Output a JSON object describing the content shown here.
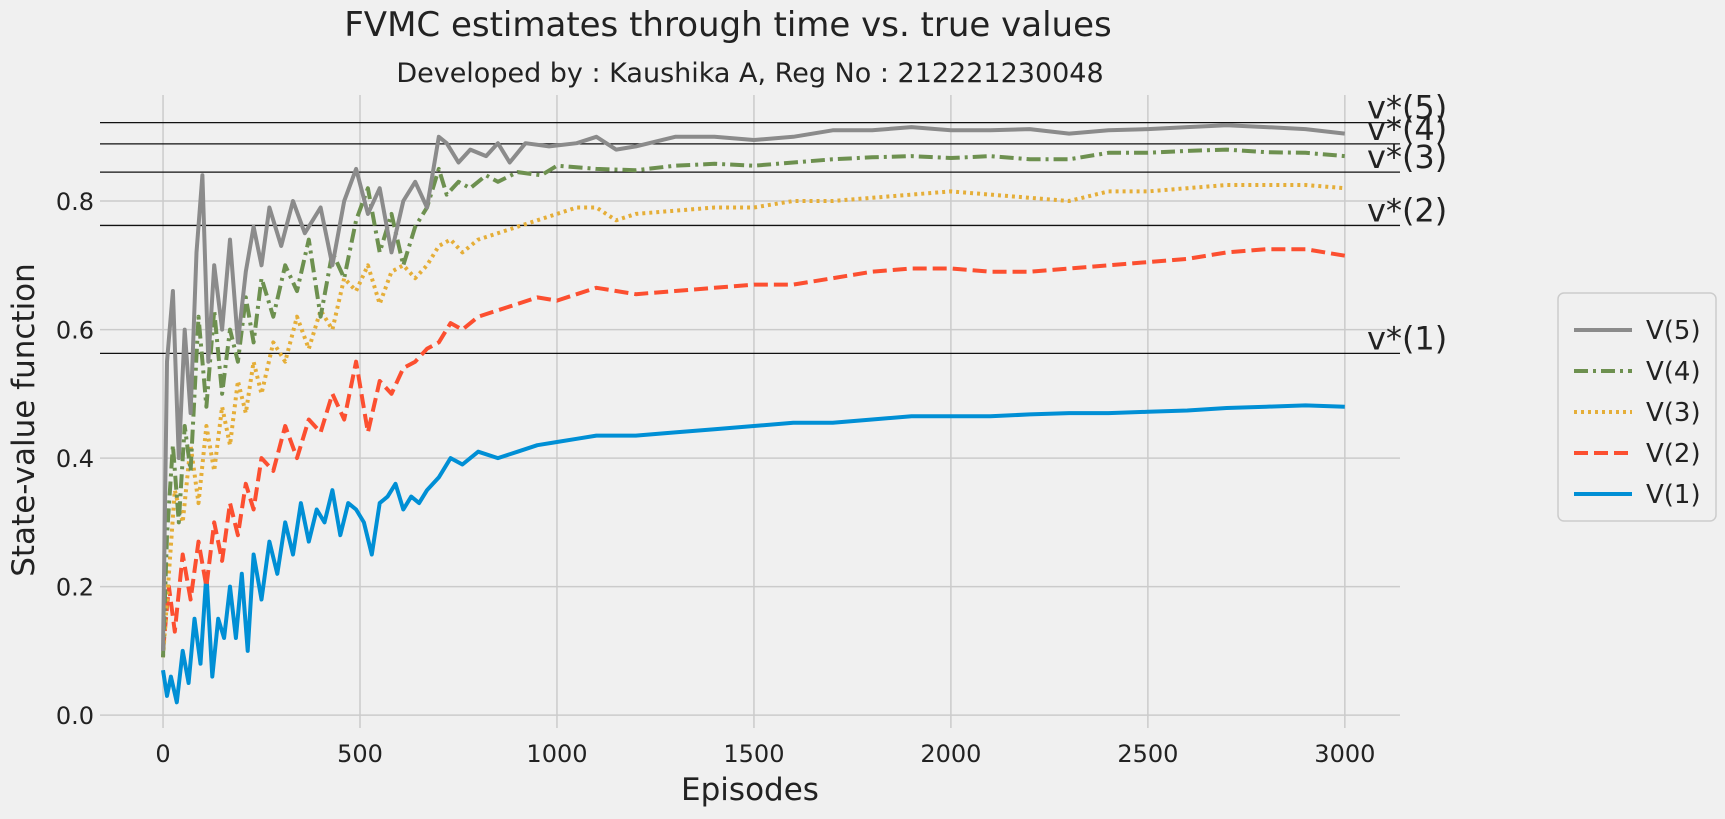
{
  "chart_data": {
    "type": "line",
    "title": "FVMC estimates through time vs. true values",
    "subtitle": "Developed by : Kaushika A, Reg No : 212221230048",
    "xlabel": "Episodes",
    "ylabel": "State-value function",
    "xlim": [
      -160,
      3140
    ],
    "ylim": [
      -0.02,
      0.965
    ],
    "xticks": [
      0,
      500,
      1000,
      1500,
      2000,
      2500,
      3000
    ],
    "yticks": [
      0.0,
      0.2,
      0.4,
      0.6,
      0.8
    ],
    "ytick_labels": [
      "0.0",
      "0.2",
      "0.4",
      "0.6",
      "0.8"
    ],
    "grid": true,
    "legend_position": "right",
    "reference_lines": [
      {
        "label": "v*(5)",
        "y": 0.922
      },
      {
        "label": "v*(4)",
        "y": 0.889
      },
      {
        "label": "v*(3)",
        "y": 0.845
      },
      {
        "label": "v*(2)",
        "y": 0.762
      },
      {
        "label": "v*(1)",
        "y": 0.563
      }
    ],
    "series": [
      {
        "name": "V(5)",
        "color": "#8b8b8b",
        "dash": "solid",
        "points": [
          [
            0,
            0.1
          ],
          [
            10,
            0.55
          ],
          [
            25,
            0.66
          ],
          [
            40,
            0.4
          ],
          [
            55,
            0.6
          ],
          [
            70,
            0.47
          ],
          [
            85,
            0.72
          ],
          [
            100,
            0.84
          ],
          [
            115,
            0.55
          ],
          [
            130,
            0.7
          ],
          [
            150,
            0.6
          ],
          [
            170,
            0.74
          ],
          [
            190,
            0.58
          ],
          [
            210,
            0.69
          ],
          [
            230,
            0.76
          ],
          [
            250,
            0.7
          ],
          [
            270,
            0.79
          ],
          [
            300,
            0.73
          ],
          [
            330,
            0.8
          ],
          [
            360,
            0.75
          ],
          [
            400,
            0.79
          ],
          [
            430,
            0.7
          ],
          [
            460,
            0.8
          ],
          [
            490,
            0.85
          ],
          [
            520,
            0.78
          ],
          [
            550,
            0.82
          ],
          [
            580,
            0.72
          ],
          [
            610,
            0.8
          ],
          [
            640,
            0.83
          ],
          [
            670,
            0.79
          ],
          [
            700,
            0.9
          ],
          [
            720,
            0.89
          ],
          [
            750,
            0.86
          ],
          [
            780,
            0.88
          ],
          [
            820,
            0.87
          ],
          [
            850,
            0.89
          ],
          [
            880,
            0.86
          ],
          [
            920,
            0.89
          ],
          [
            980,
            0.885
          ],
          [
            1050,
            0.89
          ],
          [
            1100,
            0.9
          ],
          [
            1150,
            0.88
          ],
          [
            1200,
            0.885
          ],
          [
            1300,
            0.9
          ],
          [
            1400,
            0.9
          ],
          [
            1500,
            0.895
          ],
          [
            1600,
            0.9
          ],
          [
            1700,
            0.91
          ],
          [
            1800,
            0.91
          ],
          [
            1900,
            0.915
          ],
          [
            2000,
            0.91
          ],
          [
            2100,
            0.91
          ],
          [
            2200,
            0.912
          ],
          [
            2300,
            0.905
          ],
          [
            2400,
            0.91
          ],
          [
            2500,
            0.912
          ],
          [
            2600,
            0.915
          ],
          [
            2700,
            0.918
          ],
          [
            2800,
            0.915
          ],
          [
            2900,
            0.912
          ],
          [
            3000,
            0.905
          ]
        ]
      },
      {
        "name": "V(4)",
        "color": "#6d904f",
        "dash": "dashdot",
        "points": [
          [
            0,
            0.09
          ],
          [
            10,
            0.28
          ],
          [
            25,
            0.42
          ],
          [
            40,
            0.3
          ],
          [
            55,
            0.45
          ],
          [
            70,
            0.38
          ],
          [
            90,
            0.62
          ],
          [
            110,
            0.48
          ],
          [
            130,
            0.63
          ],
          [
            150,
            0.5
          ],
          [
            170,
            0.6
          ],
          [
            190,
            0.55
          ],
          [
            210,
            0.65
          ],
          [
            230,
            0.58
          ],
          [
            250,
            0.68
          ],
          [
            280,
            0.62
          ],
          [
            310,
            0.7
          ],
          [
            340,
            0.66
          ],
          [
            370,
            0.74
          ],
          [
            400,
            0.62
          ],
          [
            430,
            0.72
          ],
          [
            460,
            0.68
          ],
          [
            490,
            0.77
          ],
          [
            520,
            0.82
          ],
          [
            550,
            0.72
          ],
          [
            580,
            0.78
          ],
          [
            610,
            0.7
          ],
          [
            640,
            0.76
          ],
          [
            670,
            0.79
          ],
          [
            700,
            0.85
          ],
          [
            720,
            0.81
          ],
          [
            750,
            0.83
          ],
          [
            780,
            0.82
          ],
          [
            820,
            0.84
          ],
          [
            850,
            0.83
          ],
          [
            900,
            0.845
          ],
          [
            960,
            0.84
          ],
          [
            1000,
            0.855
          ],
          [
            1100,
            0.85
          ],
          [
            1200,
            0.848
          ],
          [
            1300,
            0.855
          ],
          [
            1400,
            0.858
          ],
          [
            1500,
            0.855
          ],
          [
            1600,
            0.86
          ],
          [
            1700,
            0.865
          ],
          [
            1800,
            0.868
          ],
          [
            1900,
            0.87
          ],
          [
            2000,
            0.867
          ],
          [
            2100,
            0.87
          ],
          [
            2200,
            0.865
          ],
          [
            2300,
            0.865
          ],
          [
            2400,
            0.875
          ],
          [
            2500,
            0.875
          ],
          [
            2600,
            0.878
          ],
          [
            2700,
            0.88
          ],
          [
            2800,
            0.876
          ],
          [
            2900,
            0.875
          ],
          [
            3000,
            0.87
          ]
        ]
      },
      {
        "name": "V(3)",
        "color": "#e5ae38",
        "dash": "dotted",
        "points": [
          [
            0,
            0.09
          ],
          [
            15,
            0.22
          ],
          [
            30,
            0.35
          ],
          [
            50,
            0.3
          ],
          [
            70,
            0.42
          ],
          [
            90,
            0.33
          ],
          [
            110,
            0.45
          ],
          [
            130,
            0.38
          ],
          [
            150,
            0.48
          ],
          [
            170,
            0.42
          ],
          [
            190,
            0.52
          ],
          [
            210,
            0.47
          ],
          [
            230,
            0.55
          ],
          [
            250,
            0.5
          ],
          [
            280,
            0.58
          ],
          [
            310,
            0.55
          ],
          [
            340,
            0.62
          ],
          [
            370,
            0.57
          ],
          [
            400,
            0.63
          ],
          [
            430,
            0.6
          ],
          [
            460,
            0.68
          ],
          [
            490,
            0.66
          ],
          [
            520,
            0.7
          ],
          [
            550,
            0.64
          ],
          [
            580,
            0.69
          ],
          [
            610,
            0.7
          ],
          [
            640,
            0.68
          ],
          [
            670,
            0.7
          ],
          [
            700,
            0.73
          ],
          [
            730,
            0.74
          ],
          [
            760,
            0.72
          ],
          [
            800,
            0.74
          ],
          [
            850,
            0.75
          ],
          [
            900,
            0.76
          ],
          [
            950,
            0.77
          ],
          [
            1000,
            0.78
          ],
          [
            1050,
            0.79
          ],
          [
            1100,
            0.79
          ],
          [
            1150,
            0.77
          ],
          [
            1200,
            0.78
          ],
          [
            1300,
            0.785
          ],
          [
            1400,
            0.79
          ],
          [
            1500,
            0.79
          ],
          [
            1600,
            0.8
          ],
          [
            1700,
            0.8
          ],
          [
            1800,
            0.805
          ],
          [
            1900,
            0.81
          ],
          [
            2000,
            0.815
          ],
          [
            2100,
            0.81
          ],
          [
            2200,
            0.805
          ],
          [
            2300,
            0.8
          ],
          [
            2400,
            0.815
          ],
          [
            2500,
            0.815
          ],
          [
            2600,
            0.82
          ],
          [
            2700,
            0.825
          ],
          [
            2800,
            0.825
          ],
          [
            2900,
            0.825
          ],
          [
            3000,
            0.82
          ]
        ]
      },
      {
        "name": "V(2)",
        "color": "#fc4f30",
        "dash": "dashed",
        "points": [
          [
            0,
            0.1
          ],
          [
            15,
            0.2
          ],
          [
            30,
            0.13
          ],
          [
            50,
            0.25
          ],
          [
            70,
            0.18
          ],
          [
            90,
            0.27
          ],
          [
            110,
            0.2
          ],
          [
            130,
            0.3
          ],
          [
            150,
            0.24
          ],
          [
            170,
            0.33
          ],
          [
            190,
            0.28
          ],
          [
            210,
            0.36
          ],
          [
            230,
            0.32
          ],
          [
            250,
            0.4
          ],
          [
            280,
            0.38
          ],
          [
            310,
            0.45
          ],
          [
            340,
            0.4
          ],
          [
            370,
            0.46
          ],
          [
            400,
            0.44
          ],
          [
            430,
            0.5
          ],
          [
            460,
            0.46
          ],
          [
            490,
            0.55
          ],
          [
            520,
            0.44
          ],
          [
            550,
            0.52
          ],
          [
            580,
            0.5
          ],
          [
            610,
            0.54
          ],
          [
            640,
            0.55
          ],
          [
            670,
            0.57
          ],
          [
            700,
            0.58
          ],
          [
            730,
            0.61
          ],
          [
            760,
            0.6
          ],
          [
            800,
            0.62
          ],
          [
            850,
            0.63
          ],
          [
            900,
            0.64
          ],
          [
            950,
            0.65
          ],
          [
            1000,
            0.645
          ],
          [
            1050,
            0.655
          ],
          [
            1100,
            0.665
          ],
          [
            1150,
            0.66
          ],
          [
            1200,
            0.655
          ],
          [
            1300,
            0.66
          ],
          [
            1400,
            0.665
          ],
          [
            1500,
            0.67
          ],
          [
            1600,
            0.67
          ],
          [
            1700,
            0.68
          ],
          [
            1800,
            0.69
          ],
          [
            1900,
            0.695
          ],
          [
            2000,
            0.695
          ],
          [
            2100,
            0.69
          ],
          [
            2200,
            0.69
          ],
          [
            2300,
            0.695
          ],
          [
            2400,
            0.7
          ],
          [
            2500,
            0.705
          ],
          [
            2600,
            0.71
          ],
          [
            2700,
            0.72
          ],
          [
            2800,
            0.725
          ],
          [
            2900,
            0.725
          ],
          [
            3000,
            0.715
          ]
        ]
      },
      {
        "name": "V(1)",
        "color": "#008fd5",
        "dash": "solid",
        "points": [
          [
            0,
            0.07
          ],
          [
            10,
            0.03
          ],
          [
            20,
            0.06
          ],
          [
            35,
            0.02
          ],
          [
            50,
            0.1
          ],
          [
            65,
            0.05
          ],
          [
            80,
            0.15
          ],
          [
            95,
            0.08
          ],
          [
            110,
            0.22
          ],
          [
            125,
            0.06
          ],
          [
            140,
            0.15
          ],
          [
            155,
            0.12
          ],
          [
            170,
            0.2
          ],
          [
            185,
            0.12
          ],
          [
            200,
            0.22
          ],
          [
            215,
            0.1
          ],
          [
            230,
            0.25
          ],
          [
            250,
            0.18
          ],
          [
            270,
            0.27
          ],
          [
            290,
            0.22
          ],
          [
            310,
            0.3
          ],
          [
            330,
            0.25
          ],
          [
            350,
            0.33
          ],
          [
            370,
            0.27
          ],
          [
            390,
            0.32
          ],
          [
            410,
            0.3
          ],
          [
            430,
            0.35
          ],
          [
            450,
            0.28
          ],
          [
            470,
            0.33
          ],
          [
            490,
            0.32
          ],
          [
            510,
            0.3
          ],
          [
            530,
            0.25
          ],
          [
            550,
            0.33
          ],
          [
            570,
            0.34
          ],
          [
            590,
            0.36
          ],
          [
            610,
            0.32
          ],
          [
            630,
            0.34
          ],
          [
            650,
            0.33
          ],
          [
            670,
            0.35
          ],
          [
            700,
            0.37
          ],
          [
            730,
            0.4
          ],
          [
            760,
            0.39
          ],
          [
            800,
            0.41
          ],
          [
            850,
            0.4
          ],
          [
            900,
            0.41
          ],
          [
            950,
            0.42
          ],
          [
            1000,
            0.425
          ],
          [
            1050,
            0.43
          ],
          [
            1100,
            0.435
          ],
          [
            1150,
            0.435
          ],
          [
            1200,
            0.435
          ],
          [
            1300,
            0.44
          ],
          [
            1400,
            0.445
          ],
          [
            1500,
            0.45
          ],
          [
            1600,
            0.455
          ],
          [
            1700,
            0.455
          ],
          [
            1800,
            0.46
          ],
          [
            1900,
            0.465
          ],
          [
            2000,
            0.465
          ],
          [
            2100,
            0.465
          ],
          [
            2200,
            0.468
          ],
          [
            2300,
            0.47
          ],
          [
            2400,
            0.47
          ],
          [
            2500,
            0.472
          ],
          [
            2600,
            0.474
          ],
          [
            2700,
            0.478
          ],
          [
            2800,
            0.48
          ],
          [
            2900,
            0.482
          ],
          [
            3000,
            0.48
          ]
        ]
      }
    ]
  }
}
